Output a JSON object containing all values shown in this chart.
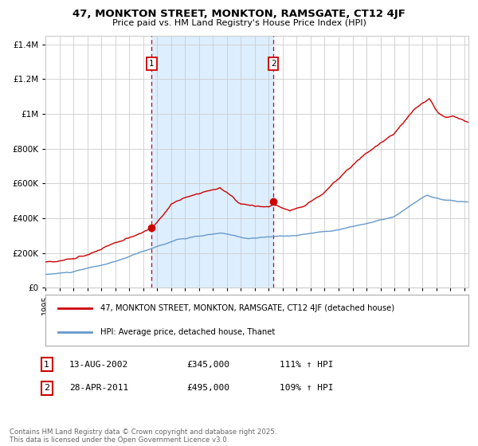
{
  "title": "47, MONKTON STREET, MONKTON, RAMSGATE, CT12 4JF",
  "subtitle": "Price paid vs. HM Land Registry's House Price Index (HPI)",
  "legend_entry1": "47, MONKTON STREET, MONKTON, RAMSGATE, CT12 4JF (detached house)",
  "legend_entry2": "HPI: Average price, detached house, Thanet",
  "annotation1_label": "1",
  "annotation1_date": "13-AUG-2002",
  "annotation1_price": "£345,000",
  "annotation1_hpi": "111% ↑ HPI",
  "annotation2_label": "2",
  "annotation2_date": "28-APR-2011",
  "annotation2_price": "£495,000",
  "annotation2_hpi": "109% ↑ HPI",
  "footer": "Contains HM Land Registry data © Crown copyright and database right 2025.\nThis data is licensed under the Open Government Licence v3.0.",
  "red_color": "#cc0000",
  "blue_color": "#6699cc",
  "shade_color": "#ddeeff",
  "grid_color": "#cccccc",
  "background_color": "#ffffff",
  "ylim": [
    0,
    1450000
  ],
  "sale1_x": 2002.617,
  "sale1_y": 345000,
  "sale2_x": 2011.327,
  "sale2_y": 495000,
  "yticks": [
    0,
    200000,
    400000,
    600000,
    800000,
    1000000,
    1200000,
    1400000
  ],
  "ytick_labels": [
    "£0",
    "£200K",
    "£400K",
    "£600K",
    "£800K",
    "£1M",
    "£1.2M",
    "£1.4M"
  ],
  "xlim_start": 1995,
  "xlim_end": 2025.3
}
